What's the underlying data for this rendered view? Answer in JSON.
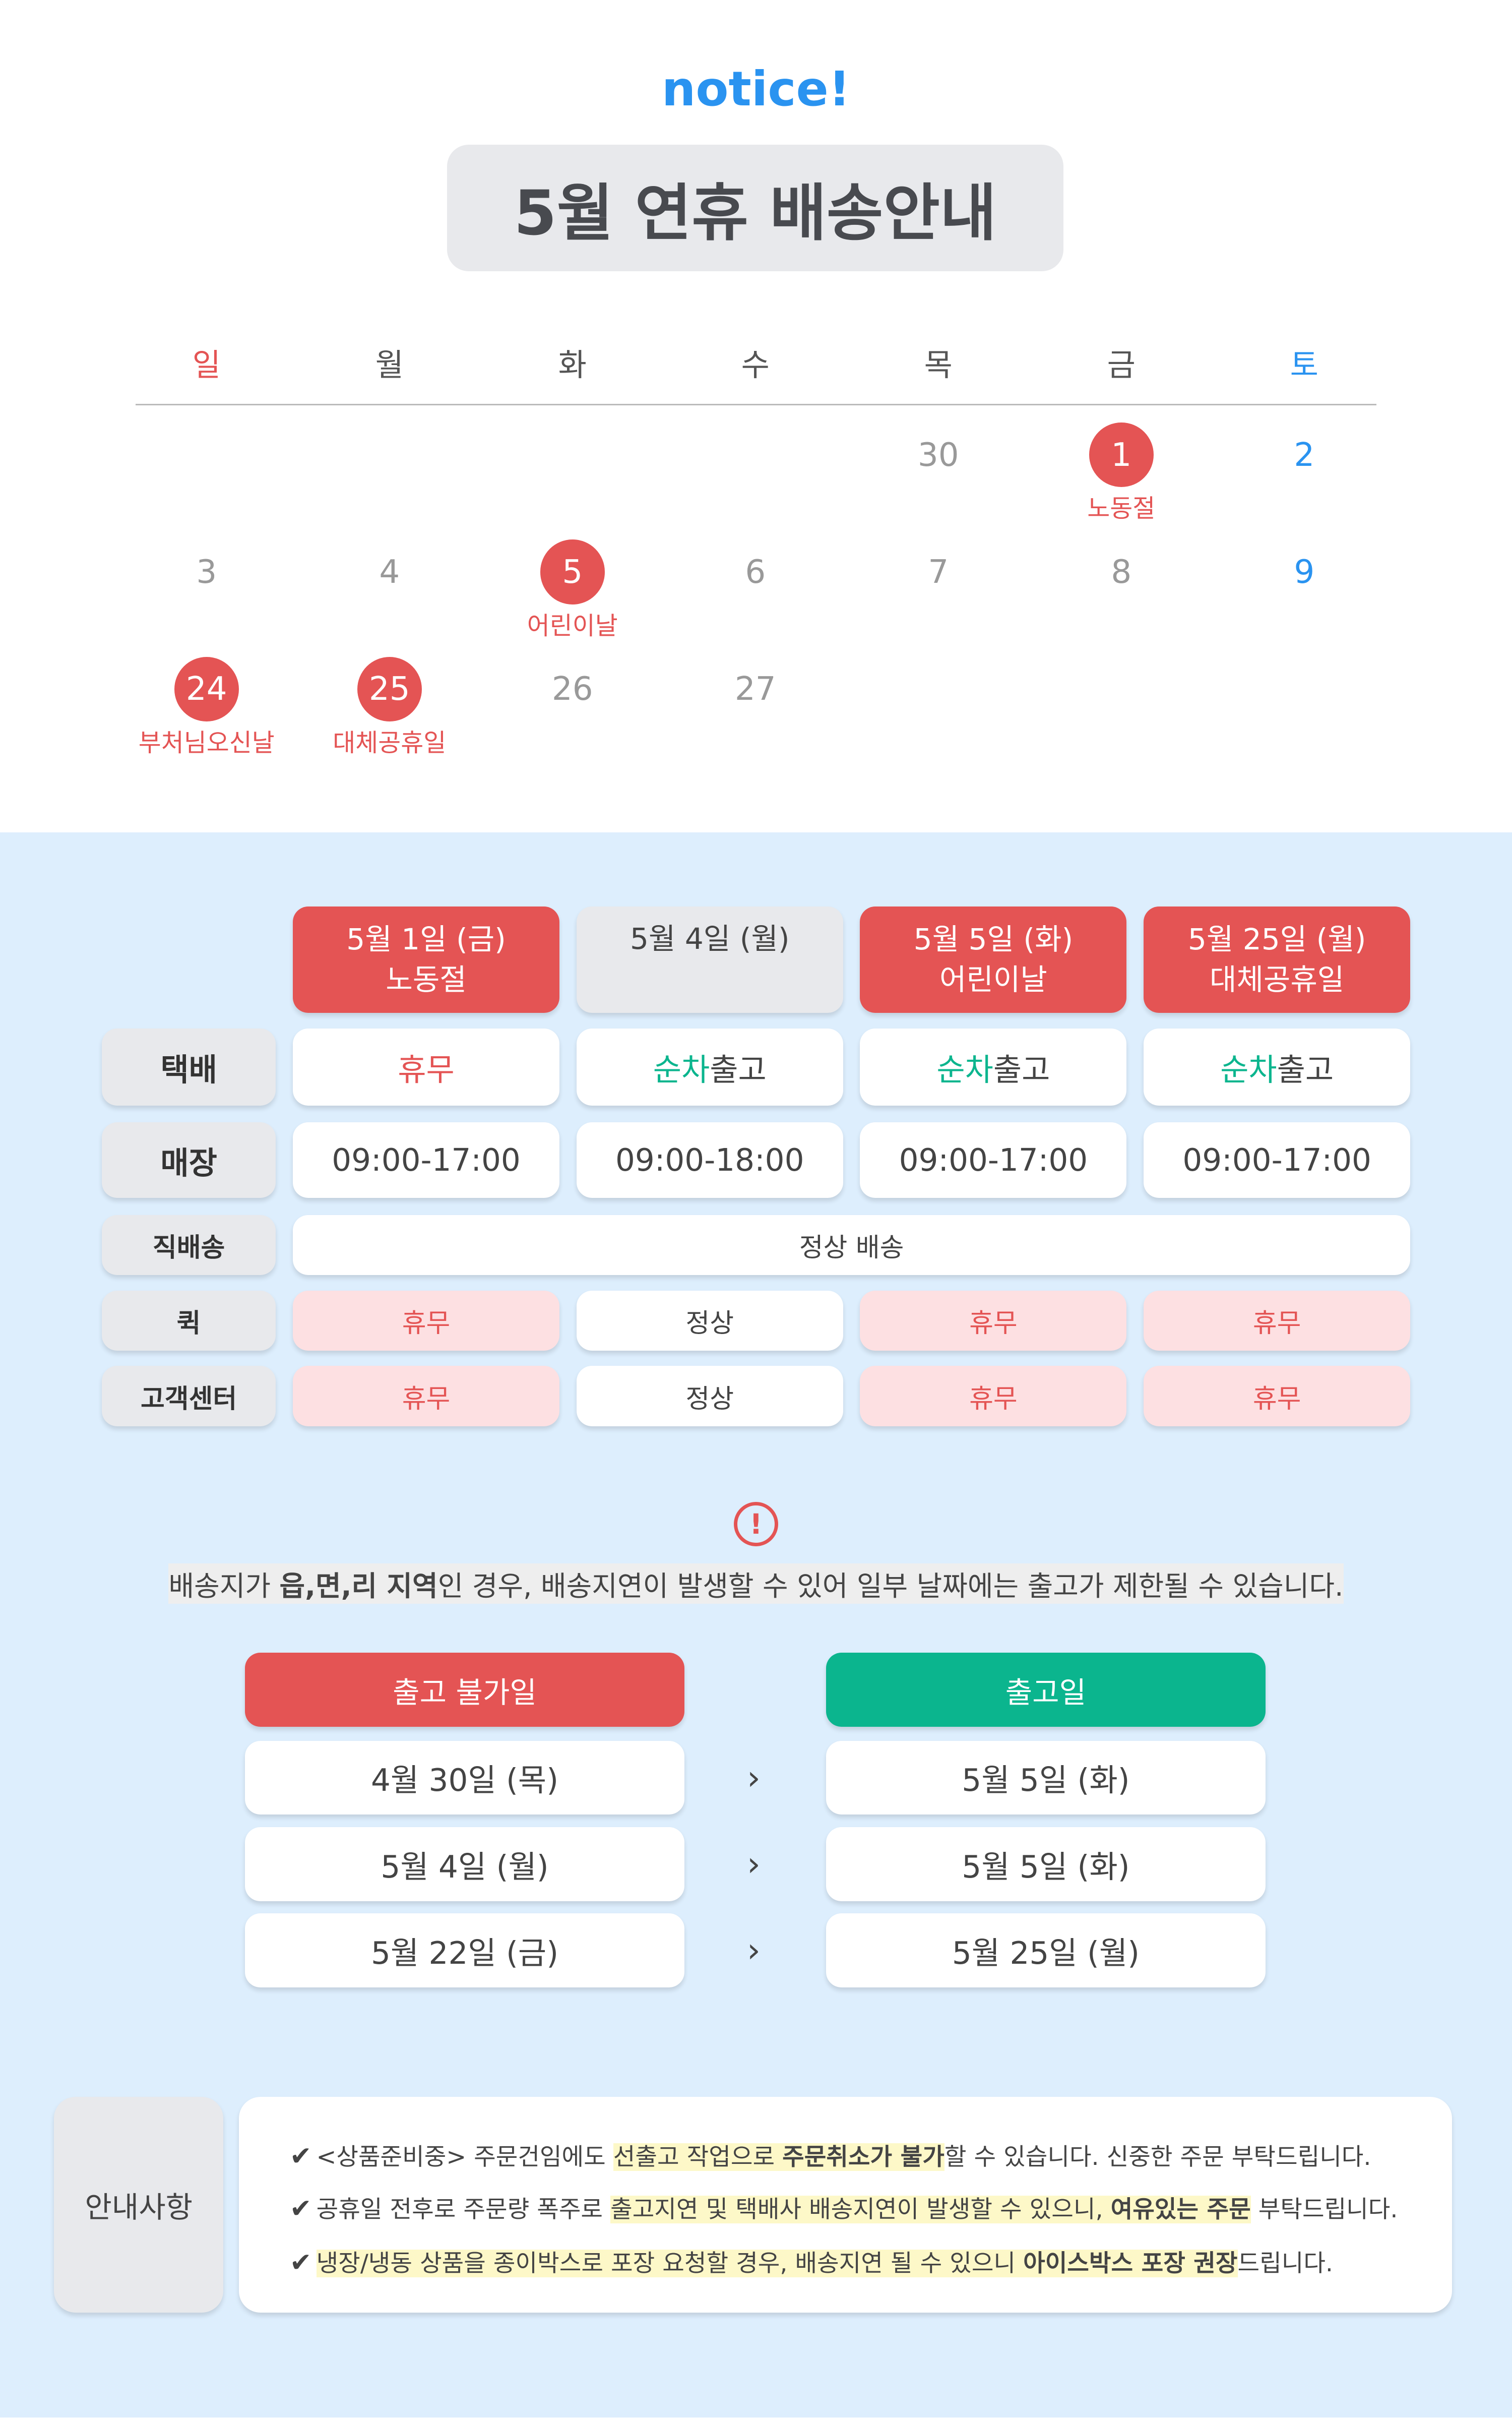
{
  "header": {
    "notice": "notice!",
    "title": "5월 연휴 배송안내"
  },
  "calendar": {
    "weekdays": [
      "일",
      "월",
      "화",
      "수",
      "목",
      "금",
      "토"
    ],
    "weekday_colors": {
      "sun": "#e45454",
      "sat": "#2a93f0"
    },
    "days": [
      {
        "d": "30",
        "col": 4,
        "row": 0
      },
      {
        "d": "1",
        "col": 5,
        "row": 0,
        "holiday": "노동절"
      },
      {
        "d": "2",
        "col": 6,
        "row": 0
      },
      {
        "d": "3",
        "col": 0,
        "row": 1
      },
      {
        "d": "4",
        "col": 1,
        "row": 1
      },
      {
        "d": "5",
        "col": 2,
        "row": 1,
        "holiday": "어린이날"
      },
      {
        "d": "6",
        "col": 3,
        "row": 1
      },
      {
        "d": "7",
        "col": 4,
        "row": 1
      },
      {
        "d": "8",
        "col": 5,
        "row": 1
      },
      {
        "d": "9",
        "col": 6,
        "row": 1
      },
      {
        "d": "24",
        "col": 0,
        "row": 2,
        "holiday": "부처님오신날"
      },
      {
        "d": "25",
        "col": 1,
        "row": 2,
        "holiday": "대체공휴일"
      },
      {
        "d": "26",
        "col": 2,
        "row": 2
      },
      {
        "d": "27",
        "col": 3,
        "row": 2
      }
    ]
  },
  "schedule": {
    "columns": [
      {
        "date": "5월 1일 (금)",
        "name": "노동절",
        "holiday": true
      },
      {
        "date": "5월 4일 (월)",
        "name": "",
        "holiday": false
      },
      {
        "date": "5월 5일 (화)",
        "name": "어린이날",
        "holiday": true
      },
      {
        "date": "5월 25일 (월)",
        "name": "대체공휴일",
        "holiday": true
      }
    ],
    "rows": {
      "parcel": {
        "label": "택배",
        "cells": [
          "휴무",
          "순차|출고",
          "순차|출고",
          "순차|출고"
        ]
      },
      "store": {
        "label": "매장",
        "cells": [
          "09:00-17:00",
          "09:00-18:00",
          "09:00-17:00",
          "09:00-17:00"
        ]
      },
      "direct": {
        "label": "직배송",
        "value": "정상 배송"
      },
      "quick": {
        "label": "퀵",
        "cells": [
          "휴무",
          "정상",
          "휴무",
          "휴무"
        ]
      },
      "cs": {
        "label": "고객센터",
        "cells": [
          "휴무",
          "정상",
          "휴무",
          "휴무"
        ]
      }
    }
  },
  "warning": {
    "pre": "배송지가 ",
    "bold": "읍,면,리 지역",
    "post": "인 경우, 배송지연이 발생할 수 있어 일부 날짜에는 출고가 제한될 수 있습니다."
  },
  "shipping": {
    "blocked_label": "출고 불가일",
    "ship_label": "출고일",
    "blocked": [
      "4월 30일 (목)",
      "5월 4일 (월)",
      "5월 22일 (금)"
    ],
    "ship": [
      "5월 5일 (화)",
      "5월 5일 (화)",
      "5월 25일 (월)"
    ]
  },
  "notes": {
    "label": "안내사항",
    "check": "✔",
    "line1": {
      "a": "<상품준비중> 주문건임에도 ",
      "hl": "선출고 작업으로 ",
      "hlb": "주문취소가 불가",
      "b": "할 수 있습니다. 신중한 주문 부탁드립니다."
    },
    "line2": {
      "a": "공휴일 전후로 주문량 폭주로 ",
      "hl": "출고지연 및 택배사 배송지연이 발생할 수 있으니, ",
      "hlb": "여유있는 주문",
      "b": " 부탁드립니다."
    },
    "line3": {
      "hl": "냉장/냉동 상품을 종이박스로 포장 요청할 경우, 배송지연 될 수 있으니 ",
      "hlb": "아이스박스 포장 권장",
      "b": "드립니다."
    }
  },
  "colors": {
    "red": "#e45454",
    "green": "#0bb58e",
    "blue": "#2a93f0",
    "bg_blue": "#ddeefd"
  }
}
